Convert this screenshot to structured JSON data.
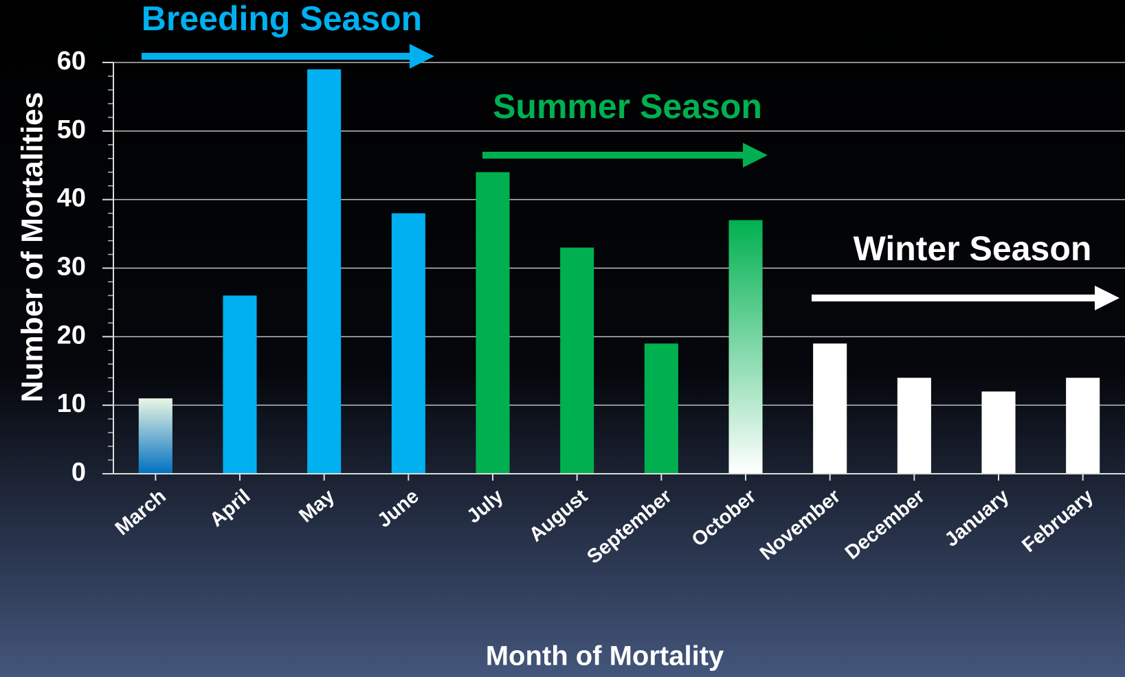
{
  "chart_data": {
    "type": "bar",
    "categories": [
      "March",
      "April",
      "May",
      "June",
      "July",
      "August",
      "September",
      "October",
      "November",
      "December",
      "January",
      "February"
    ],
    "values": [
      11,
      26,
      59,
      38,
      44,
      33,
      19,
      37,
      19,
      14,
      12,
      14
    ],
    "colors": [
      [
        "#eaf6e4",
        "#0070c0"
      ],
      "#00b0f0",
      "#00b0f0",
      "#00b0f0",
      "#00b050",
      "#00b050",
      "#00b050",
      [
        "#00b050",
        "#ffffff"
      ],
      "#ffffff",
      "#ffffff",
      "#ffffff",
      "#ffffff"
    ],
    "ylim": [
      0,
      60
    ],
    "yticks": [
      0,
      10,
      20,
      30,
      40,
      50,
      60
    ],
    "grid": true,
    "y_label": "Number of Mortalities",
    "x_label": "Month of Mortality",
    "annotations": [
      {
        "text": "Breeding Season",
        "color": "#00b0f0"
      },
      {
        "text": "Summer Season",
        "color": "#00b050"
      },
      {
        "text": "Winter Season",
        "color": "#ffffff"
      }
    ]
  }
}
